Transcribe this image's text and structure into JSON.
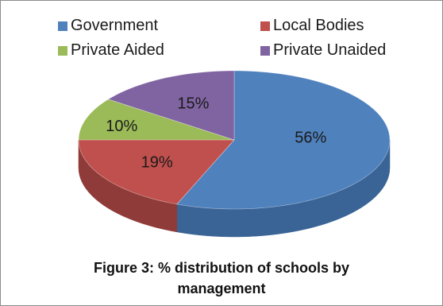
{
  "chart_data": {
    "type": "pie",
    "categories": [
      "Government",
      "Local Bodies",
      "Private Aided",
      "Private Unaided"
    ],
    "values": [
      56,
      19,
      10,
      15
    ],
    "labels": [
      "56%",
      "19%",
      "10%",
      "15%"
    ],
    "colors": [
      "#4f81bd",
      "#c0504d",
      "#9bbb59",
      "#8064a2"
    ],
    "side_colors": [
      "#3a6496",
      "#8f3b39",
      "#71893f",
      "#5d4a78"
    ],
    "style": "3d-perspective",
    "legend_position": "top",
    "title": ""
  },
  "caption": {
    "line1": "Figure 3: % distribution of schools by",
    "line2": "management"
  }
}
